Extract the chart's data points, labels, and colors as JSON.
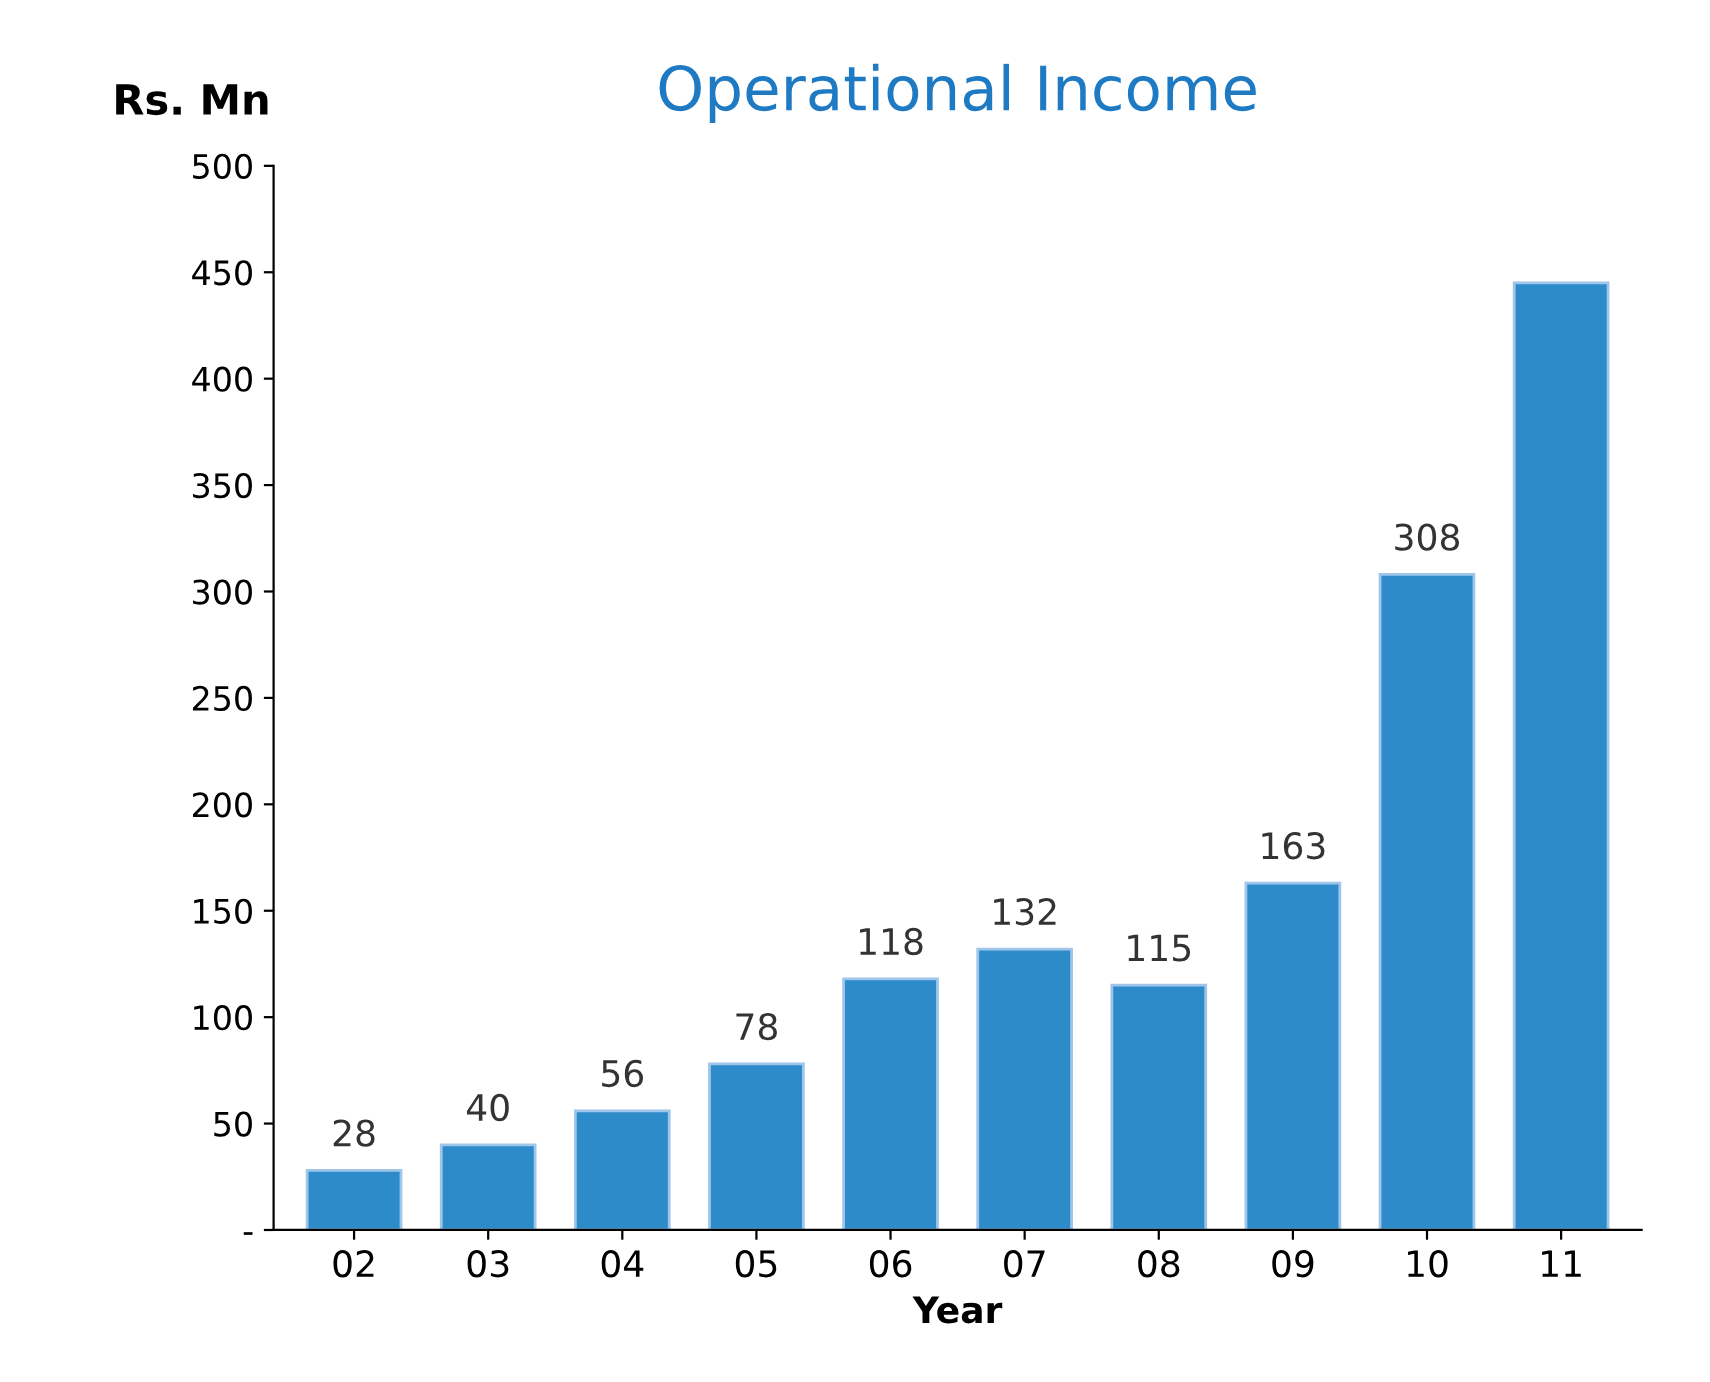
{
  "chart_data": {
    "type": "bar",
    "title": "Operational Income",
    "ylabel": "Rs. Mn",
    "xlabel": "Year",
    "categories": [
      "02",
      "03",
      "04",
      "05",
      "06",
      "07",
      "08",
      "09",
      "10",
      "11"
    ],
    "values": [
      28,
      40,
      56,
      78,
      118,
      132,
      115,
      163,
      308,
      445
    ],
    "value_labels": [
      "28",
      "40",
      "56",
      "78",
      "118",
      "132",
      "115",
      "163",
      "308",
      null
    ],
    "color": "#2e8bc9",
    "ylim": [
      0,
      500
    ],
    "yticks": [
      {
        "value": 0,
        "label": "-"
      },
      50,
      100,
      150,
      200,
      250,
      300,
      350,
      400,
      450,
      500
    ],
    "grid": false,
    "legend": false
  }
}
